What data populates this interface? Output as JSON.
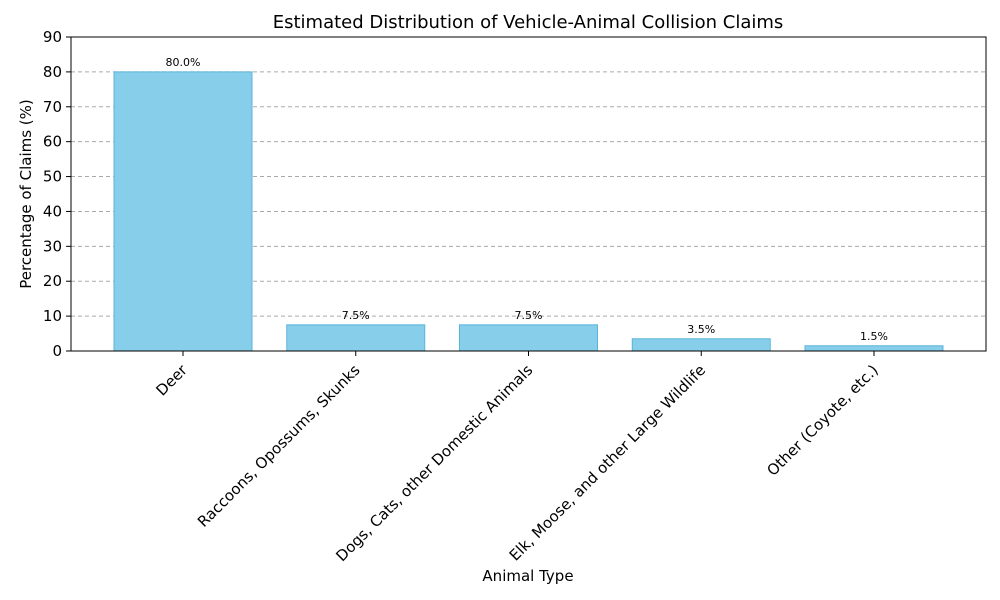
{
  "chart_data": {
    "type": "bar",
    "title": "Estimated Distribution of Vehicle-Animal Collision Claims",
    "xlabel": "Animal Type",
    "ylabel": "Percentage of Claims (%)",
    "categories": [
      "Deer",
      "Raccoons, Opossums, Skunks",
      "Dogs, Cats, other Domestic Animals",
      "Elk, Moose, and other Large Wildlife",
      "Other (Coyote, etc.)"
    ],
    "values": [
      80.0,
      7.5,
      7.5,
      3.5,
      1.5
    ],
    "data_labels": [
      "80.0%",
      "7.5%",
      "7.5%",
      "3.5%",
      "1.5%"
    ],
    "ylim": [
      0,
      90
    ],
    "yticks": [
      0,
      10,
      20,
      30,
      40,
      50,
      60,
      70,
      80,
      90
    ],
    "grid": "y-dashed",
    "bar_color": "#87CEEB",
    "bar_edge_color": "#5BB4DA"
  }
}
